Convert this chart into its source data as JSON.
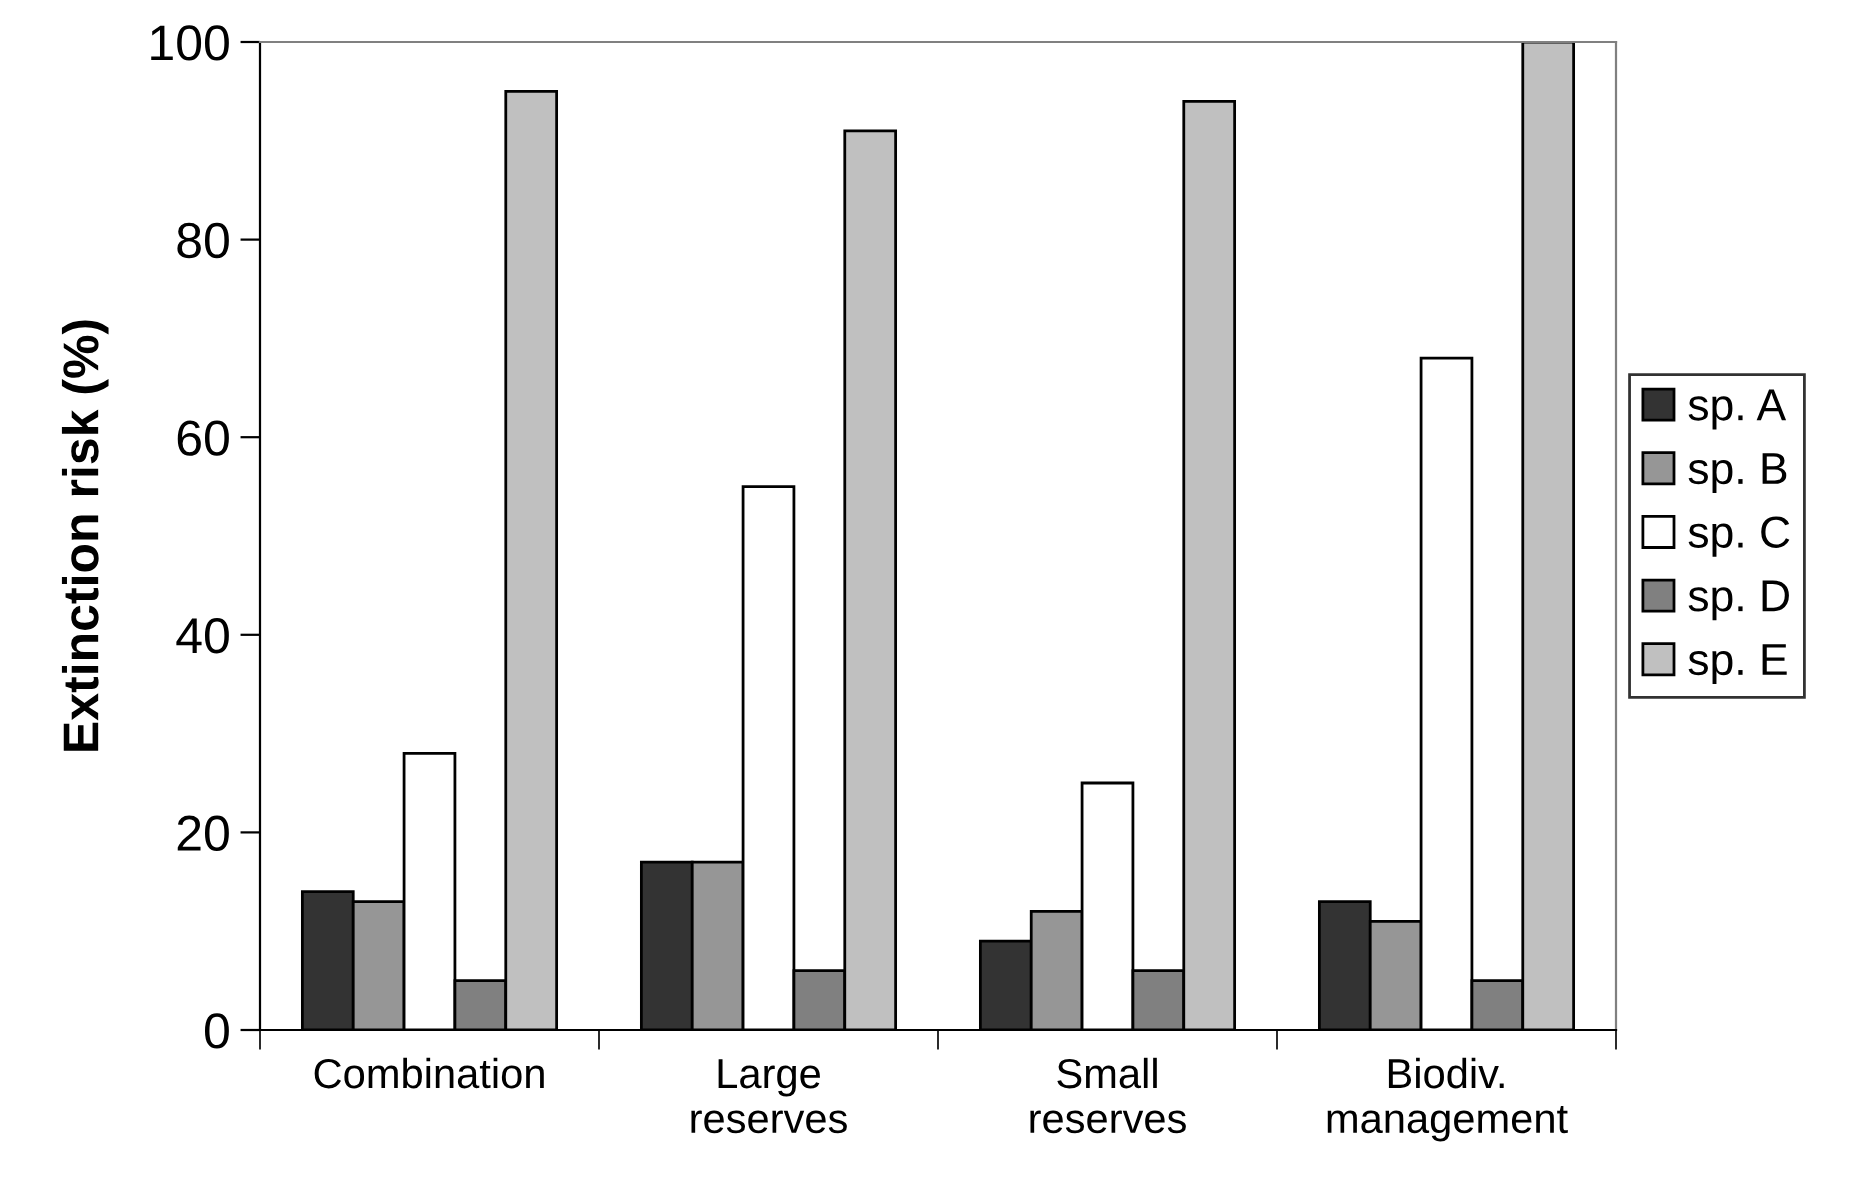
{
  "chart_data": {
    "type": "bar",
    "ylabel": "Extinction risk (%)",
    "categories": [
      "Combination",
      "Large\nreserves",
      "Small\nreserves",
      "Biodiv.\nmanagement"
    ],
    "series": [
      {
        "name": "sp. A",
        "color": "#333333",
        "values": [
          14,
          17,
          9,
          13
        ]
      },
      {
        "name": "sp. B",
        "color": "#969696",
        "values": [
          13,
          17,
          12,
          11
        ]
      },
      {
        "name": "sp. C",
        "color": "#ffffff",
        "values": [
          28,
          55,
          25,
          68
        ]
      },
      {
        "name": "sp. D",
        "color": "#808080",
        "values": [
          5,
          6,
          6,
          5
        ]
      },
      {
        "name": "sp. E",
        "color": "#c0c0c0",
        "values": [
          95,
          91,
          94,
          100
        ]
      }
    ],
    "ylim": [
      0,
      100
    ],
    "yticks": [
      0,
      20,
      40,
      60,
      80,
      100
    ],
    "grid": false,
    "legend": "right"
  }
}
